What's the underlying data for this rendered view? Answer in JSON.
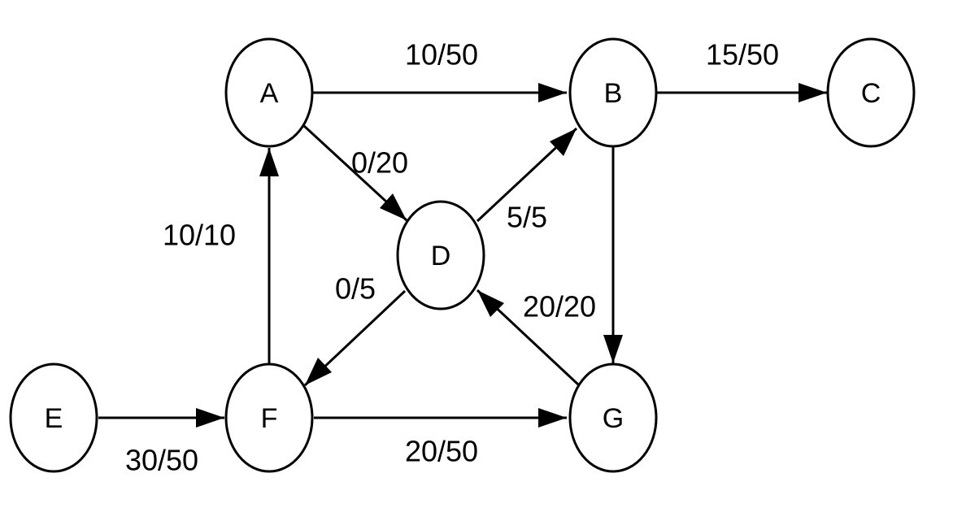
{
  "nodes": [
    {
      "id": "A",
      "label": "A"
    },
    {
      "id": "B",
      "label": "B"
    },
    {
      "id": "C",
      "label": "C"
    },
    {
      "id": "D",
      "label": "D"
    },
    {
      "id": "E",
      "label": "E"
    },
    {
      "id": "F",
      "label": "F"
    },
    {
      "id": "G",
      "label": "G"
    }
  ],
  "edges": [
    {
      "from": "A",
      "to": "B",
      "label": "10/50"
    },
    {
      "from": "B",
      "to": "C",
      "label": "15/50"
    },
    {
      "from": "A",
      "to": "D",
      "label": "0/20"
    },
    {
      "from": "D",
      "to": "B",
      "label": "5/5"
    },
    {
      "from": "F",
      "to": "A",
      "label": "10/10"
    },
    {
      "from": "D",
      "to": "F",
      "label": "0/5"
    },
    {
      "from": "G",
      "to": "D",
      "label": "20/20"
    },
    {
      "from": "B",
      "to": "G",
      "label": ""
    },
    {
      "from": "E",
      "to": "F",
      "label": "30/50"
    },
    {
      "from": "F",
      "to": "G",
      "label": "20/50"
    }
  ]
}
